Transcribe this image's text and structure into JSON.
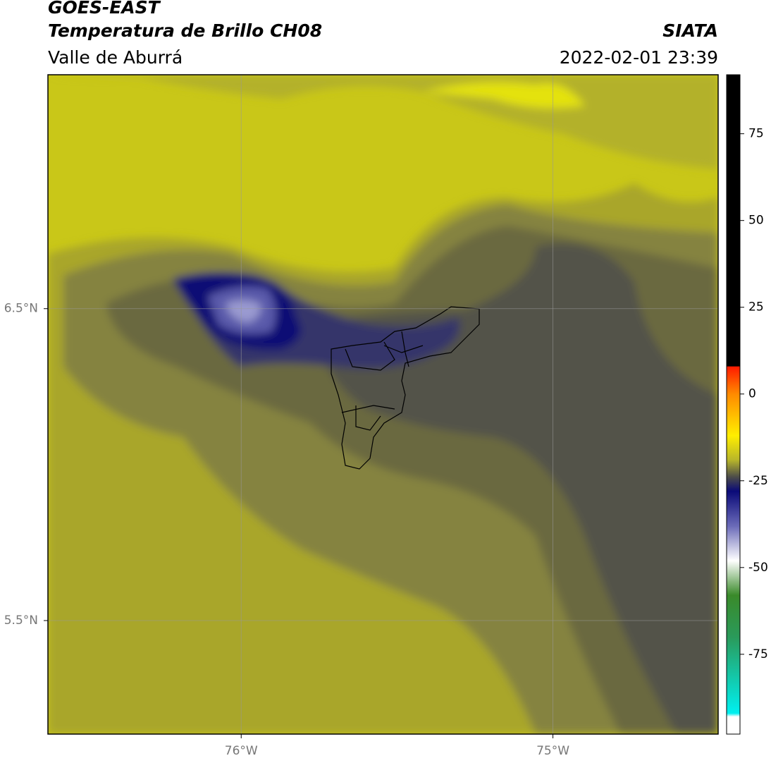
{
  "header": {
    "title": "GOES-EAST",
    "subtitle": "Temperatura de Brillo CH08",
    "region": "Valle de Aburrá",
    "source": "SIATA",
    "datetime": "2022-02-01 23:39"
  },
  "map": {
    "xlim": [
      -76.62,
      -74.47
    ],
    "ylim": [
      5.136,
      7.25
    ],
    "xticks": [
      {
        "value": -76,
        "label": "76°W"
      },
      {
        "value": -75,
        "label": "75°W"
      }
    ],
    "yticks": [
      {
        "value": 6.5,
        "label": "6.5°N"
      },
      {
        "value": 5.5,
        "label": "5.5°N"
      }
    ],
    "grid": true
  },
  "colorbar": {
    "lim": [
      -98,
      92
    ],
    "ticks": [
      75,
      50,
      25,
      0,
      -25,
      -50,
      -75
    ],
    "stops": [
      {
        "value": 92,
        "color": "#000000"
      },
      {
        "value": 8,
        "color": "#000000"
      },
      {
        "value": 7.9,
        "color": "#ff1a00"
      },
      {
        "value": 0,
        "color": "#ff8a00"
      },
      {
        "value": -12,
        "color": "#ffee00"
      },
      {
        "value": -19,
        "color": "#b8b62a"
      },
      {
        "value": -24,
        "color": "#4a4a4a"
      },
      {
        "value": -28,
        "color": "#0a0a78"
      },
      {
        "value": -38,
        "color": "#6a6ab8"
      },
      {
        "value": -48,
        "color": "#ffffff"
      },
      {
        "value": -58,
        "color": "#3a8a2a"
      },
      {
        "value": -70,
        "color": "#2a9a5a"
      },
      {
        "value": -92,
        "color": "#00f0f0"
      },
      {
        "value": -93,
        "color": "#ffffff"
      },
      {
        "value": -98,
        "color": "#ffffff"
      }
    ]
  }
}
